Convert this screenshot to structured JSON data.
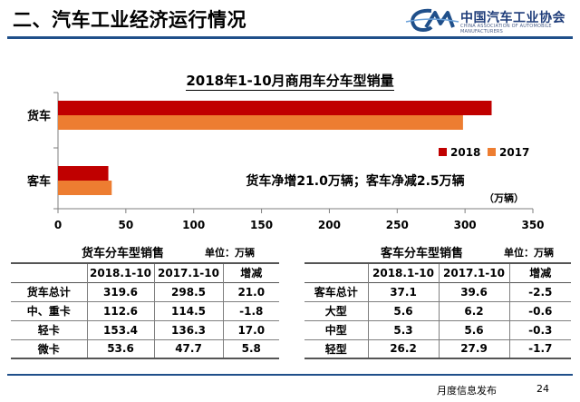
{
  "header": {
    "title": "二、汽车工业经济运行情况",
    "logo_text": "中国汽车工业协会",
    "logo_sub": "CHINA ASSOCIATION OF AUTOMOBILE MANUFACTURERS",
    "logo_mark": "CM",
    "accent_color": "#1f4f8a"
  },
  "chart_data": {
    "type": "bar",
    "orientation": "horizontal",
    "title": "2018年1-10月商用车分车型销量",
    "categories": [
      "货车",
      "客车"
    ],
    "series": [
      {
        "name": "2018",
        "color": "#c00000",
        "values": [
          319.6,
          37.1
        ]
      },
      {
        "name": "2017",
        "color": "#ed7d31",
        "values": [
          298.5,
          39.6
        ]
      }
    ],
    "x_ticks": [
      0,
      50,
      100,
      150,
      200,
      250,
      300,
      350
    ],
    "xlim": [
      0,
      350
    ],
    "unit": "（万辆）",
    "annotation": "货车净增21.0万辆；客车净减2.5万辆",
    "legend_position": "right",
    "grid": false
  },
  "truck_table": {
    "title": "货车分车型销售",
    "unit": "单位：万辆",
    "headers": [
      "",
      "2018.1-10",
      "2017.1-10",
      "增减"
    ],
    "rows": [
      [
        "货车总计",
        "319.6",
        "298.5",
        "21.0"
      ],
      [
        "中、重卡",
        "112.6",
        "114.5",
        "-1.8"
      ],
      [
        "轻卡",
        "153.4",
        "136.3",
        "17.0"
      ],
      [
        "微卡",
        "53.6",
        "47.7",
        "5.8"
      ]
    ]
  },
  "bus_table": {
    "title": "客车分车型销售",
    "unit": "单位：万辆",
    "headers": [
      "",
      "2018.1-10",
      "2017.1-10",
      "增减"
    ],
    "rows": [
      [
        "客车总计",
        "37.1",
        "39.6",
        "-2.5"
      ],
      [
        "大型",
        "5.6",
        "6.2",
        "-0.6"
      ],
      [
        "中型",
        "5.3",
        "5.6",
        "-0.3"
      ],
      [
        "轻型",
        "26.2",
        "27.9",
        "-1.7"
      ]
    ]
  },
  "footer": {
    "label": "月度信息发布",
    "page": "24"
  }
}
